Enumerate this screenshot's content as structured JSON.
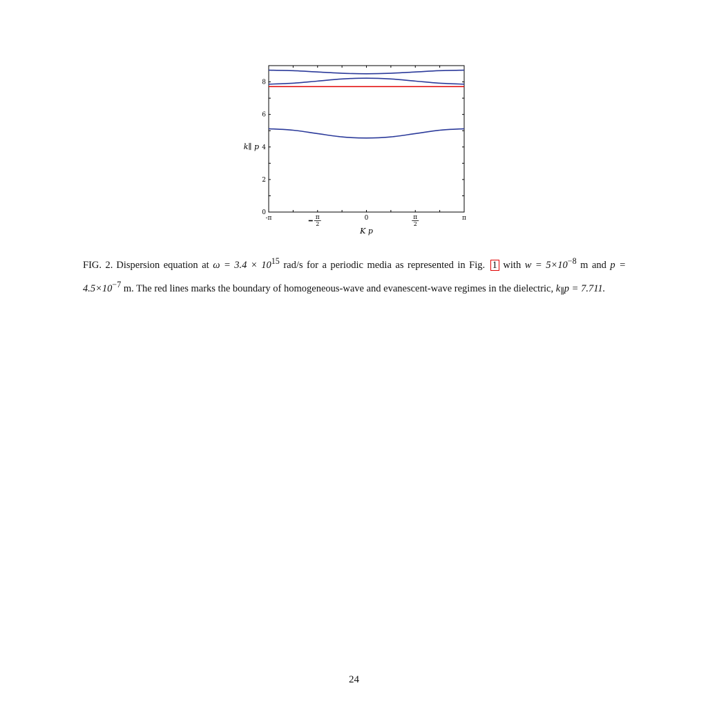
{
  "chart_data": {
    "type": "line",
    "xlabel": "K p",
    "ylabel": "k∥ p",
    "xlim": [
      -3.14159,
      3.14159
    ],
    "ylim": [
      0,
      9
    ],
    "x_ticks": [
      {
        "value": -3.14159,
        "label": "-π"
      },
      {
        "value": -1.5708,
        "label": "−π/2"
      },
      {
        "value": 0,
        "label": "0"
      },
      {
        "value": 1.5708,
        "label": "π/2"
      },
      {
        "value": 3.14159,
        "label": "π"
      }
    ],
    "y_ticks": [
      {
        "value": 0,
        "label": "0"
      },
      {
        "value": 2,
        "label": "2"
      },
      {
        "value": 4,
        "label": "4"
      },
      {
        "value": 6,
        "label": "6"
      },
      {
        "value": 8,
        "label": "8"
      }
    ],
    "series": [
      {
        "color": "#2b3a9a",
        "x": [
          -3.14159,
          -2.356,
          -1.5708,
          -0.785,
          0,
          0.785,
          1.5708,
          2.356,
          3.14159
        ],
        "values": [
          5.12,
          5.03,
          4.82,
          4.62,
          4.55,
          4.62,
          4.82,
          5.03,
          5.12
        ]
      },
      {
        "color": "#2b3a9a",
        "x": [
          -3.14159,
          -2.356,
          -1.5708,
          -0.785,
          0,
          0.785,
          1.5708,
          2.356,
          3.14159
        ],
        "values": [
          7.86,
          7.92,
          8.05,
          8.18,
          8.23,
          8.18,
          8.05,
          7.92,
          7.86
        ]
      },
      {
        "color": "#2b3a9a",
        "x": [
          -3.14159,
          -2.356,
          -1.5708,
          -0.785,
          0,
          0.785,
          1.5708,
          2.356,
          3.14159
        ],
        "values": [
          8.72,
          8.69,
          8.61,
          8.53,
          8.5,
          8.53,
          8.61,
          8.69,
          8.72
        ]
      },
      {
        "color": "#e00000",
        "x": [
          -3.14159,
          3.14159
        ],
        "values": [
          7.711,
          7.711
        ]
      }
    ]
  },
  "caption": {
    "label": "FIG. 2.",
    "part1": "Dispersion equation at ",
    "omega": "ω = 3.4 × 10",
    "omega_exp": "15",
    "part2": " rad/s for a periodic media as represented in Fig. ",
    "figref": "1",
    "part3": " with ",
    "w": "w = 5×10",
    "w_exp": "−8",
    "part4": " m and ",
    "p": "p = 4.5×10",
    "p_exp": "−7",
    "part5": " m. The red lines marks the boundary of homogeneous-wave and evanescent-wave regimes in the dielectric, ",
    "k": "k",
    "k_sub": "∥",
    "k_tail": "p = 7.711."
  },
  "page_number": "24"
}
